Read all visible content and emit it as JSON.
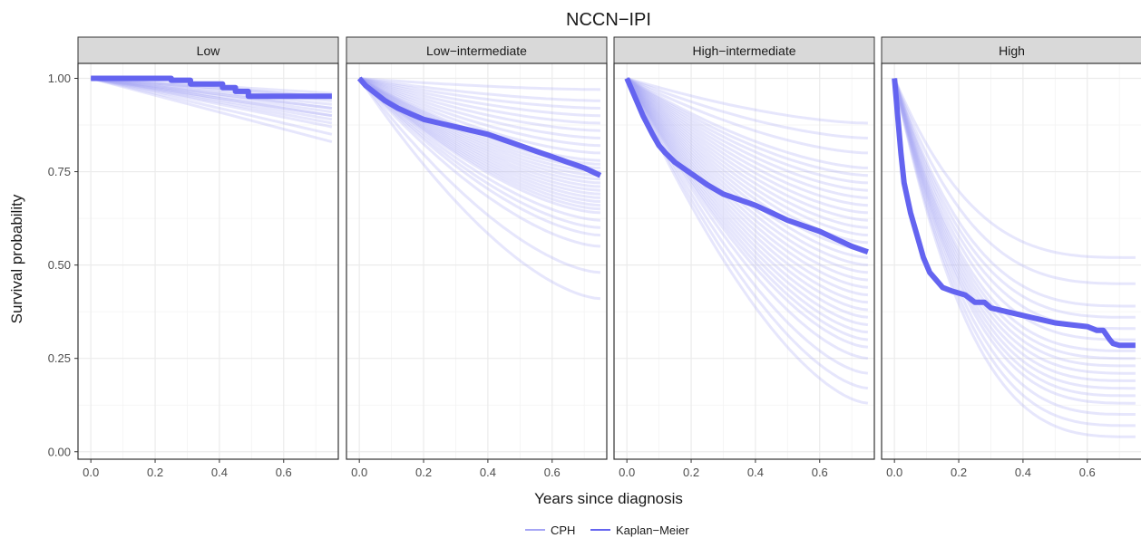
{
  "chart_data": {
    "type": "line",
    "title": "NCCN−IPI",
    "xlabel": "Years since diagnosis",
    "ylabel": "Survival probability",
    "xlim": [
      -0.04,
      0.77
    ],
    "ylim": [
      -0.02,
      1.04
    ],
    "x_ticks": [
      0.0,
      0.2,
      0.4,
      0.6
    ],
    "x_tick_labels": [
      "0.0",
      "0.2",
      "0.4",
      "0.6"
    ],
    "y_ticks": [
      0.0,
      0.25,
      0.5,
      0.75,
      1.0
    ],
    "y_tick_labels": [
      "0.00",
      "0.25",
      "0.50",
      "0.75",
      "1.00"
    ],
    "grid": true,
    "legend": {
      "position": "bottom",
      "entries": [
        {
          "label": "CPH",
          "color": "#a5a5f5"
        },
        {
          "label": "Kaplan−Meier",
          "color": "#6464f0"
        }
      ]
    },
    "colors": {
      "cph": "#a5a5f5",
      "km": "#6464f0",
      "strip_bg": "#d9d9d9",
      "panel_border": "#333333",
      "grid": "#ebebeb"
    },
    "panels": [
      {
        "label": "Low",
        "km": {
          "x": [
            0.0,
            0.25,
            0.25,
            0.31,
            0.31,
            0.41,
            0.41,
            0.45,
            0.45,
            0.49,
            0.49,
            0.75
          ],
          "y": [
            1.0,
            1.0,
            0.995,
            0.995,
            0.985,
            0.985,
            0.975,
            0.975,
            0.965,
            0.965,
            0.952,
            0.952
          ]
        },
        "cph_end": [
          0.83,
          0.85,
          0.87,
          0.88,
          0.89,
          0.9,
          0.9,
          0.91,
          0.92,
          0.92,
          0.93,
          0.94,
          0.95,
          0.95,
          0.96
        ],
        "cph_shape": "linear"
      },
      {
        "label": "Low−intermediate",
        "km": {
          "x": [
            0.0,
            0.02,
            0.05,
            0.08,
            0.12,
            0.16,
            0.2,
            0.25,
            0.3,
            0.35,
            0.4,
            0.45,
            0.5,
            0.55,
            0.6,
            0.65,
            0.7,
            0.75
          ],
          "y": [
            1.0,
            0.98,
            0.96,
            0.94,
            0.92,
            0.905,
            0.89,
            0.88,
            0.87,
            0.86,
            0.85,
            0.835,
            0.82,
            0.805,
            0.79,
            0.775,
            0.76,
            0.74
          ]
        },
        "cph_end": [
          0.41,
          0.48,
          0.55,
          0.58,
          0.6,
          0.62,
          0.64,
          0.65,
          0.66,
          0.67,
          0.68,
          0.69,
          0.7,
          0.71,
          0.72,
          0.73,
          0.74,
          0.75,
          0.76,
          0.77,
          0.78,
          0.8,
          0.82,
          0.84,
          0.86,
          0.88,
          0.9,
          0.92,
          0.94,
          0.97
        ],
        "cph_shape": "concave"
      },
      {
        "label": "High−intermediate",
        "km": {
          "x": [
            0.0,
            0.02,
            0.05,
            0.08,
            0.1,
            0.12,
            0.15,
            0.2,
            0.25,
            0.3,
            0.35,
            0.4,
            0.45,
            0.5,
            0.55,
            0.6,
            0.65,
            0.7,
            0.75
          ],
          "y": [
            1.0,
            0.96,
            0.9,
            0.85,
            0.82,
            0.8,
            0.775,
            0.745,
            0.715,
            0.69,
            0.675,
            0.66,
            0.64,
            0.62,
            0.605,
            0.59,
            0.57,
            0.55,
            0.535
          ]
        },
        "cph_end": [
          0.13,
          0.17,
          0.21,
          0.25,
          0.28,
          0.3,
          0.32,
          0.34,
          0.36,
          0.38,
          0.4,
          0.42,
          0.44,
          0.46,
          0.48,
          0.5,
          0.52,
          0.54,
          0.56,
          0.58,
          0.6,
          0.62,
          0.64,
          0.66,
          0.68,
          0.7,
          0.72,
          0.74,
          0.76,
          0.8,
          0.84,
          0.88
        ],
        "cph_shape": "concave"
      },
      {
        "label": "High",
        "km": {
          "x": [
            0.0,
            0.01,
            0.02,
            0.03,
            0.05,
            0.07,
            0.09,
            0.11,
            0.13,
            0.15,
            0.18,
            0.22,
            0.25,
            0.28,
            0.3,
            0.35,
            0.4,
            0.45,
            0.5,
            0.55,
            0.6,
            0.63,
            0.65,
            0.67,
            0.68,
            0.7,
            0.75
          ],
          "y": [
            1.0,
            0.9,
            0.8,
            0.72,
            0.64,
            0.58,
            0.52,
            0.48,
            0.46,
            0.44,
            0.43,
            0.42,
            0.4,
            0.4,
            0.385,
            0.375,
            0.365,
            0.355,
            0.345,
            0.34,
            0.335,
            0.325,
            0.325,
            0.3,
            0.29,
            0.285,
            0.285
          ]
        },
        "cph_end": [
          0.04,
          0.07,
          0.1,
          0.13,
          0.15,
          0.17,
          0.19,
          0.21,
          0.23,
          0.25,
          0.27,
          0.3,
          0.33,
          0.36,
          0.39,
          0.45,
          0.52
        ],
        "cph_shape": "steep"
      }
    ]
  }
}
